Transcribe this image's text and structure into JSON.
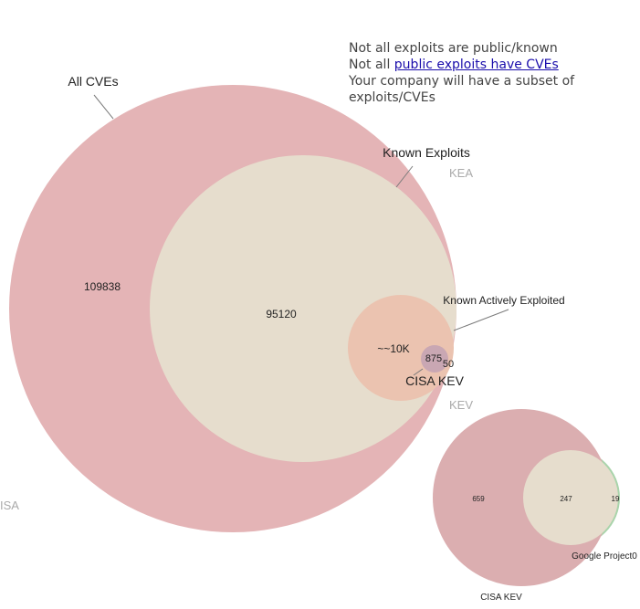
{
  "notes": {
    "line1": "Not all exploits are public/known",
    "line2_prefix": "Not all ",
    "line2_link": "public exploits have CVEs",
    "line3": "Your company will have a subset of exploits/CVEs"
  },
  "main_diagram": {
    "sets": [
      {
        "key": "all_cves",
        "label": "All CVEs",
        "count_label": "109838",
        "color": "#e4b4b6"
      },
      {
        "key": "known_exploits",
        "label": "Known Exploits",
        "count_label": "95120",
        "color": "#e6ddcd"
      },
      {
        "key": "known_actively_exploited",
        "label": "Known Actively Exploited",
        "count_label": "~~10K",
        "color": "#ebc3b0"
      },
      {
        "key": "cisa_kev",
        "label": "CISA KEV",
        "count_label": "875",
        "color": "#c9a7b3"
      }
    ],
    "extra_count_label": "50",
    "side_labels": {
      "kea": "KEA",
      "kev": "KEV",
      "cisa": "ISA"
    }
  },
  "small_diagram": {
    "sets": [
      {
        "key": "cisa_kev",
        "label": "CISA KEV",
        "count_label": "659",
        "color": "#dbaeb0"
      },
      {
        "key": "overlap",
        "label": "",
        "count_label": "247",
        "color": "#e6ddcd"
      },
      {
        "key": "google_project0",
        "label": "Google Project0",
        "count_label": "19",
        "color": "#a9d4ab"
      }
    ]
  },
  "colors": {
    "leader_line": "#7a7a7a",
    "label_dark": "#222222",
    "label_light": "#aaaaaa"
  }
}
